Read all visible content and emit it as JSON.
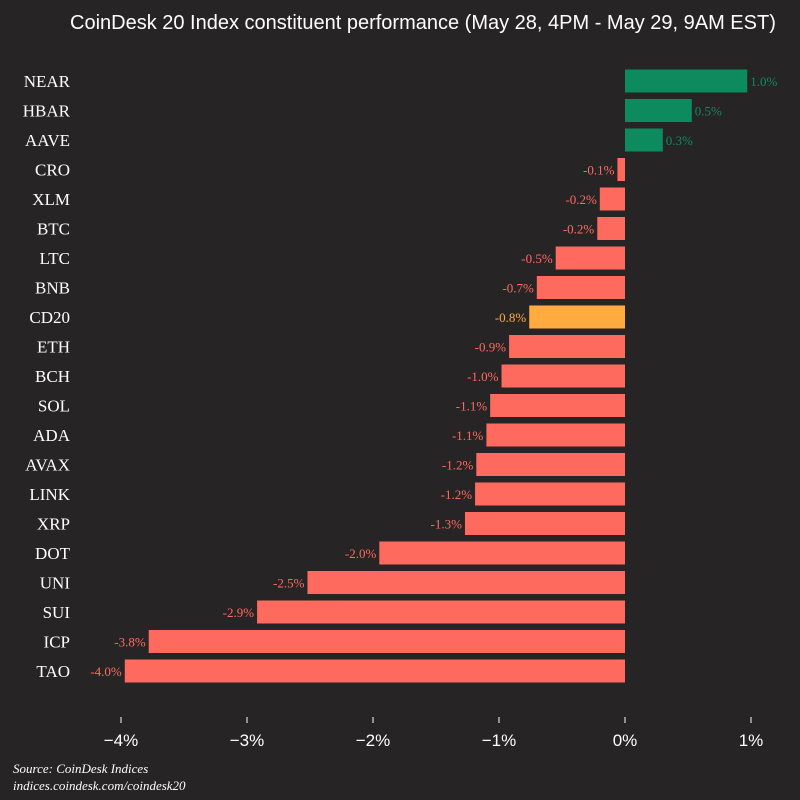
{
  "title": "CoinDesk 20 Index constituent performance (May 28, 4PM - May 29, 9AM EST)",
  "source": {
    "line1": "Source: CoinDesk Indices",
    "line2": "indices.coindesk.com/coindesk20"
  },
  "colors": {
    "background": "#272426",
    "positive": "#0e8a5f",
    "negative": "#ff6a5e",
    "highlight": "#ffab40",
    "text": "#ffffff"
  },
  "chart_data": {
    "type": "bar",
    "orientation": "horizontal",
    "title": "CoinDesk 20 Index constituent performance (May 28, 4PM - May 29, 9AM EST)",
    "unit": "%",
    "categories": [
      "NEAR",
      "HBAR",
      "AAVE",
      "CRO",
      "XLM",
      "BTC",
      "LTC",
      "BNB",
      "CD20",
      "ETH",
      "BCH",
      "SOL",
      "ADA",
      "AVAX",
      "LINK",
      "XRP",
      "DOT",
      "UNI",
      "SUI",
      "ICP",
      "TAO"
    ],
    "values": [
      0.97,
      0.53,
      0.3,
      -0.06,
      -0.2,
      -0.22,
      -0.55,
      -0.7,
      -0.76,
      -0.92,
      -0.98,
      -1.07,
      -1.1,
      -1.18,
      -1.19,
      -1.27,
      -1.95,
      -2.52,
      -2.92,
      -3.78,
      -3.97
    ],
    "value_labels": [
      "1.0%",
      "0.5%",
      "0.3%",
      "-0.1%",
      "-0.2%",
      "-0.2%",
      "-0.5%",
      "-0.7%",
      "-0.8%",
      "-0.9%",
      "-1.0%",
      "-1.1%",
      "-1.1%",
      "-1.2%",
      "-1.2%",
      "-1.3%",
      "-2.0%",
      "-2.5%",
      "-2.9%",
      "-3.8%",
      "-4.0%"
    ],
    "highlight": "CD20",
    "x_ticks": [
      -4,
      -3,
      -2,
      -1,
      0,
      1
    ],
    "x_tick_labels": [
      "−4%",
      "−3%",
      "−2%",
      "−1%",
      "0%",
      "1%"
    ],
    "xlim": [
      -4.4,
      1.3
    ],
    "grid": false,
    "legend": "none"
  }
}
